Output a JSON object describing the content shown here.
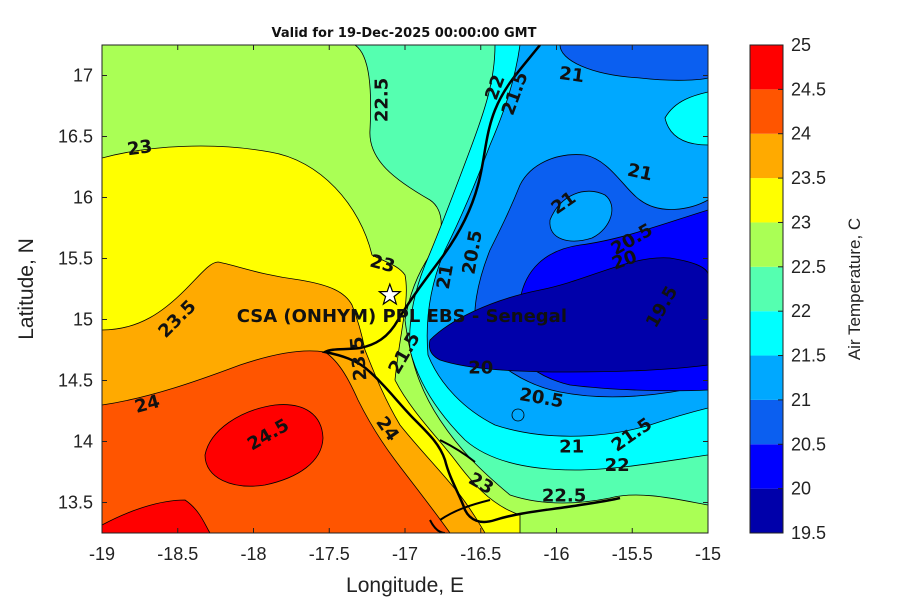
{
  "chart_data": {
    "type": "heatmap",
    "title": "Valid for 19-Dec-2025 00:00:00 GMT",
    "xlabel": "Longitude, E",
    "ylabel": "Latitude, N",
    "xlim": [
      -19,
      -15
    ],
    "ylim": [
      13.25,
      17.25
    ],
    "xticks": [
      "-19",
      "-18.5",
      "-18",
      "-17.5",
      "-17",
      "-16.5",
      "-16",
      "-15.5",
      "-15"
    ],
    "yticks": [
      "13.5",
      "14",
      "14.5",
      "15",
      "15.5",
      "16",
      "16.5",
      "17"
    ],
    "colorbar": {
      "label": "Air Temperature, C",
      "ticks": [
        "19.5",
        "20",
        "20.5",
        "21",
        "21.5",
        "22",
        "22.5",
        "23",
        "23.5",
        "24",
        "24.5",
        "25"
      ],
      "levels": [
        19.5,
        20,
        20.5,
        21,
        21.5,
        22,
        22.5,
        23,
        23.5,
        24,
        24.5,
        25
      ],
      "colors": [
        "#0000aa",
        "#0000ff",
        "#0b5ff0",
        "#00a8ff",
        "#00ffff",
        "#55ffb0",
        "#aaff55",
        "#ffff00",
        "#ffaa00",
        "#ff5500",
        "#ff0000"
      ]
    },
    "site": {
      "label": "CSA (ONHYM) PPL EBS  - Senegal",
      "lon": -17.1,
      "lat": 15.2,
      "marker": "star"
    },
    "contour_labels": [
      {
        "text": "23",
        "lon": -18.75,
        "lat": 16.4,
        "angle": -8
      },
      {
        "text": "22.5",
        "lon": -17.15,
        "lat": 16.8,
        "angle": -90
      },
      {
        "text": "22",
        "lon": -16.4,
        "lat": 16.9,
        "angle": -70
      },
      {
        "text": "21.5",
        "lon": -16.27,
        "lat": 16.85,
        "angle": -70
      },
      {
        "text": "21",
        "lon": -15.9,
        "lat": 17.0,
        "angle": 8
      },
      {
        "text": "21",
        "lon": -15.45,
        "lat": 16.2,
        "angle": 12
      },
      {
        "text": "21",
        "lon": -15.95,
        "lat": 15.95,
        "angle": -35
      },
      {
        "text": "20.5",
        "lon": -15.5,
        "lat": 15.65,
        "angle": -30
      },
      {
        "text": "20",
        "lon": -15.55,
        "lat": 15.48,
        "angle": -20
      },
      {
        "text": "19.5",
        "lon": -15.3,
        "lat": 15.1,
        "angle": -60
      },
      {
        "text": "23",
        "lon": -17.15,
        "lat": 15.45,
        "angle": 15
      },
      {
        "text": "23.5",
        "lon": -18.5,
        "lat": 15.0,
        "angle": -45
      },
      {
        "text": "20.5",
        "lon": -16.55,
        "lat": 15.55,
        "angle": -80
      },
      {
        "text": "21",
        "lon": -16.73,
        "lat": 15.35,
        "angle": -80
      },
      {
        "text": "21.5",
        "lon": -17.0,
        "lat": 14.72,
        "angle": -60
      },
      {
        "text": "23.5",
        "lon": -17.3,
        "lat": 14.68,
        "angle": -95
      },
      {
        "text": "20",
        "lon": -16.5,
        "lat": 14.6,
        "angle": 0
      },
      {
        "text": "20.5",
        "lon": -16.1,
        "lat": 14.35,
        "angle": 10
      },
      {
        "text": "24",
        "lon": -18.7,
        "lat": 14.3,
        "angle": -15
      },
      {
        "text": "24.5",
        "lon": -17.9,
        "lat": 14.05,
        "angle": -30
      },
      {
        "text": "24",
        "lon": -17.12,
        "lat": 14.1,
        "angle": 55
      },
      {
        "text": "21",
        "lon": -15.9,
        "lat": 13.95,
        "angle": 0
      },
      {
        "text": "21.5",
        "lon": -15.5,
        "lat": 14.05,
        "angle": -35
      },
      {
        "text": "22",
        "lon": -15.6,
        "lat": 13.8,
        "angle": 0
      },
      {
        "text": "23",
        "lon": -16.5,
        "lat": 13.65,
        "angle": 30
      },
      {
        "text": "22.5",
        "lon": -15.95,
        "lat": 13.55,
        "angle": 0
      }
    ],
    "grid": false
  }
}
